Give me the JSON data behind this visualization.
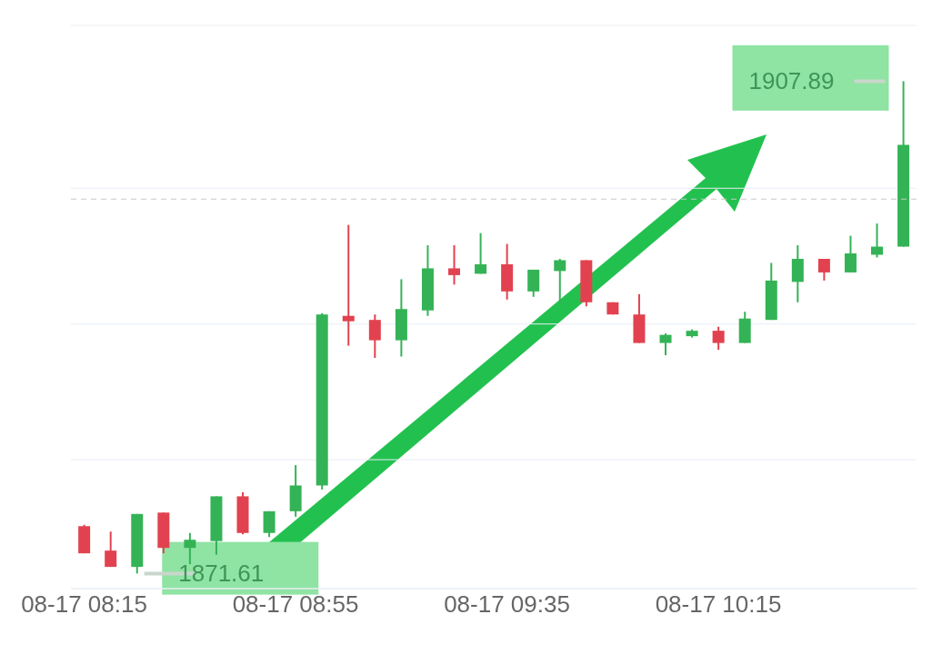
{
  "chart_data": {
    "type": "candlestick",
    "categories": [
      "08-17 08:15",
      null,
      null,
      null,
      null,
      null,
      null,
      null,
      "08-17 08:55",
      null,
      null,
      null,
      null,
      null,
      null,
      null,
      "08-17 09:35",
      null,
      null,
      null,
      null,
      null,
      null,
      null,
      "08-17 10:15",
      null,
      null,
      null,
      null,
      null,
      null,
      null
    ],
    "ohlc": [
      [
        1875.1,
        1875.2,
        1873.1,
        1873.1
      ],
      [
        1873.3,
        1874.7,
        1872.1,
        1872.1
      ],
      [
        1872.1,
        1876.0,
        1871.61,
        1876.0
      ],
      [
        1876.1,
        1876.1,
        1873.1,
        1873.5
      ],
      [
        1873.5,
        1874.6,
        1872.3,
        1874.1
      ],
      [
        1874.0,
        1877.3,
        1873.0,
        1877.3
      ],
      [
        1877.3,
        1877.6,
        1874.5,
        1874.6
      ],
      [
        1874.6,
        1876.2,
        1874.3,
        1876.2
      ],
      [
        1876.2,
        1879.6,
        1875.8,
        1878.1
      ],
      [
        1878.1,
        1890.8,
        1877.8,
        1890.7
      ],
      [
        1890.6,
        1897.3,
        1888.4,
        1890.2
      ],
      [
        1890.3,
        1890.7,
        1887.5,
        1888.8
      ],
      [
        1888.8,
        1893.3,
        1887.6,
        1891.1
      ],
      [
        1891.0,
        1895.8,
        1890.6,
        1894.1
      ],
      [
        1894.1,
        1895.8,
        1892.9,
        1893.6
      ],
      [
        1893.7,
        1896.7,
        1893.7,
        1894.4
      ],
      [
        1894.4,
        1895.9,
        1891.8,
        1892.4
      ],
      [
        1892.4,
        1894.0,
        1892.0,
        1894.0
      ],
      [
        1893.9,
        1894.8,
        1891.5,
        1894.7
      ],
      [
        1894.7,
        1894.7,
        1891.3,
        1891.6
      ],
      [
        1891.6,
        1891.6,
        1890.7,
        1890.7
      ],
      [
        1890.7,
        1892.2,
        1888.6,
        1888.6
      ],
      [
        1888.6,
        1889.3,
        1887.7,
        1889.2
      ],
      [
        1889.1,
        1889.6,
        1889.0,
        1889.5
      ],
      [
        1889.5,
        1889.8,
        1888.1,
        1888.6
      ],
      [
        1888.6,
        1890.9,
        1888.6,
        1890.4
      ],
      [
        1890.3,
        1894.5,
        1890.3,
        1893.2
      ],
      [
        1893.1,
        1895.8,
        1891.6,
        1894.8
      ],
      [
        1894.8,
        1894.8,
        1893.2,
        1893.8
      ],
      [
        1893.8,
        1896.5,
        1893.8,
        1895.2
      ],
      [
        1895.1,
        1897.4,
        1894.9,
        1895.7
      ],
      [
        1895.7,
        1907.89,
        1895.7,
        1903.2
      ]
    ],
    "colors": [
      "#e2424f",
      "#e2424f",
      "#34b356",
      "#e2424f",
      "#34b356",
      "#34b356",
      "#e2424f",
      "#34b356",
      "#34b356",
      "#34b356",
      "#e2424f",
      "#e2424f",
      "#34b356",
      "#34b356",
      "#e2424f",
      "#34b356",
      "#e2424f",
      "#34b356",
      "#34b356",
      "#e2424f",
      "#e2424f",
      "#e2424f",
      "#34b356",
      "#34b356",
      "#e2424f",
      "#34b356",
      "#34b356",
      "#34b356",
      "#e2424f",
      "#34b356",
      "#34b356",
      "#34b356"
    ],
    "ylim": [
      1870.5,
      1912
    ],
    "yticks": [
      {
        "value": 1880,
        "label": null
      },
      {
        "value": 1890,
        "label": null
      },
      {
        "value": 1900,
        "label": null
      }
    ],
    "grid": "y",
    "tick_labels": "x",
    "ref_lines": [
      {
        "axis": "y",
        "value": 1899.2,
        "color": "#c8c8c8",
        "line_style": "dashed"
      }
    ],
    "annotations": [
      "1907.89",
      "1871.61"
    ]
  }
}
